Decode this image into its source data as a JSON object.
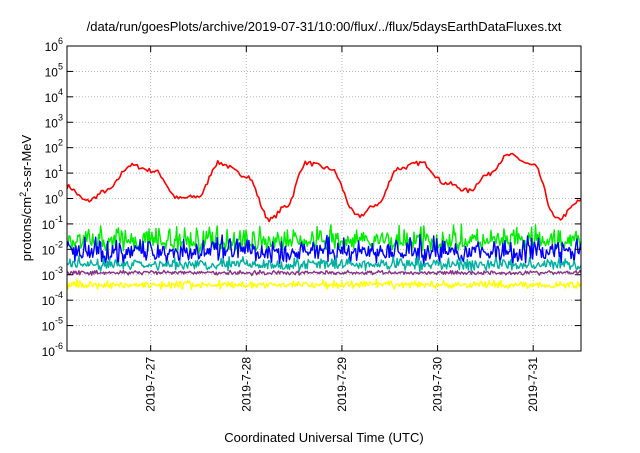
{
  "chart_data": {
    "type": "line",
    "title": "/data/run/goesPlots/archive/2019-07-31/10:00/flux/../flux/5daysEarthDataFluxes.txt",
    "xlabel": "Coordinated Universal Time (UTC)",
    "ylabel": "protons/cm2-s-sr-MeV",
    "y_scale": "log",
    "ylim": [
      1e-06,
      1000000.0
    ],
    "xlim": [
      "2019-07-26 03:00",
      "2019-07-31 12:00"
    ],
    "grid": true,
    "x_ticks": [
      "2019-7-27",
      "2019-7-28",
      "2019-7-29",
      "2019-7-30",
      "2019-7-31"
    ],
    "y_ticks": [
      {
        "base": "10",
        "exp": "-6"
      },
      {
        "base": "10",
        "exp": "-5"
      },
      {
        "base": "10",
        "exp": "-4"
      },
      {
        "base": "10",
        "exp": "-3"
      },
      {
        "base": "10",
        "exp": "-2"
      },
      {
        "base": "10",
        "exp": "-1"
      },
      {
        "base": "10",
        "exp": "0"
      },
      {
        "base": "10",
        "exp": "1"
      },
      {
        "base": "10",
        "exp": "2"
      },
      {
        "base": "10",
        "exp": "3"
      },
      {
        "base": "10",
        "exp": "4"
      },
      {
        "base": "10",
        "exp": "5"
      },
      {
        "base": "10",
        "exp": "6"
      }
    ],
    "series": [
      {
        "color": "#ff0000",
        "x": [
          "2019-07-26 03:00",
          "2019-07-26 08:00",
          "2019-07-26 13:00",
          "2019-07-26 19:00",
          "2019-07-27 01:00",
          "2019-07-27 07:00",
          "2019-07-27 12:00",
          "2019-07-27 17:00",
          "2019-07-28 00:00",
          "2019-07-28 06:00",
          "2019-07-28 10:00",
          "2019-07-28 15:00",
          "2019-07-28 21:00",
          "2019-07-29 04:00",
          "2019-07-29 09:00",
          "2019-07-29 14:00",
          "2019-07-29 20:00",
          "2019-07-30 02:00",
          "2019-07-30 08:00",
          "2019-07-30 12:00",
          "2019-07-30 18:00",
          "2019-07-31 00:00",
          "2019-07-31 06:00",
          "2019-07-31 12:00"
        ],
        "y": [
          3,
          0.8,
          2,
          20,
          12,
          1.0,
          1.2,
          25,
          8,
          0.15,
          0.5,
          25,
          15,
          0.2,
          0.6,
          15,
          25,
          4,
          2,
          8,
          50,
          20,
          0.15,
          0.8
        ]
      },
      {
        "color": "#00ee00",
        "x": [
          "2019-07-26 03:00",
          "2019-07-27 03:00",
          "2019-07-28 03:00",
          "2019-07-29 03:00",
          "2019-07-30 03:00",
          "2019-07-31 03:00",
          "2019-07-31 12:00"
        ],
        "y": [
          0.02,
          0.02,
          0.02,
          0.02,
          0.02,
          0.02,
          0.02
        ],
        "noise_range": [
          0.006,
          0.12
        ]
      },
      {
        "color": "#0000ff",
        "x": [
          "2019-07-26 03:00",
          "2019-07-27 03:00",
          "2019-07-28 03:00",
          "2019-07-29 03:00",
          "2019-07-30 03:00",
          "2019-07-31 03:00",
          "2019-07-31 12:00"
        ],
        "y": [
          0.008,
          0.008,
          0.008,
          0.008,
          0.008,
          0.008,
          0.008
        ],
        "noise_range": [
          0.002,
          0.05
        ]
      },
      {
        "color": "#00b0a0",
        "x": [
          "2019-07-26 03:00",
          "2019-07-27 03:00",
          "2019-07-28 03:00",
          "2019-07-29 03:00",
          "2019-07-30 03:00",
          "2019-07-31 03:00",
          "2019-07-31 12:00"
        ],
        "y": [
          0.0025,
          0.0025,
          0.0025,
          0.0025,
          0.0025,
          0.0025,
          0.0025
        ],
        "noise_range": [
          0.0012,
          0.006
        ]
      },
      {
        "color": "#883388",
        "x": [
          "2019-07-26 03:00",
          "2019-07-27 03:00",
          "2019-07-28 03:00",
          "2019-07-29 03:00",
          "2019-07-30 03:00",
          "2019-07-31 03:00",
          "2019-07-31 12:00"
        ],
        "y": [
          0.0012,
          0.0012,
          0.0012,
          0.0012,
          0.0012,
          0.0012,
          0.0012
        ],
        "noise_range": [
          0.0009,
          0.0016
        ]
      },
      {
        "color": "#ffff00",
        "x": [
          "2019-07-26 03:00",
          "2019-07-27 03:00",
          "2019-07-28 03:00",
          "2019-07-29 03:00",
          "2019-07-30 03:00",
          "2019-07-31 03:00",
          "2019-07-31 12:00"
        ],
        "y": [
          0.0004,
          0.0004,
          0.0004,
          0.0004,
          0.0004,
          0.0004,
          0.0004
        ],
        "noise_range": [
          0.00025,
          0.0007
        ]
      }
    ]
  }
}
